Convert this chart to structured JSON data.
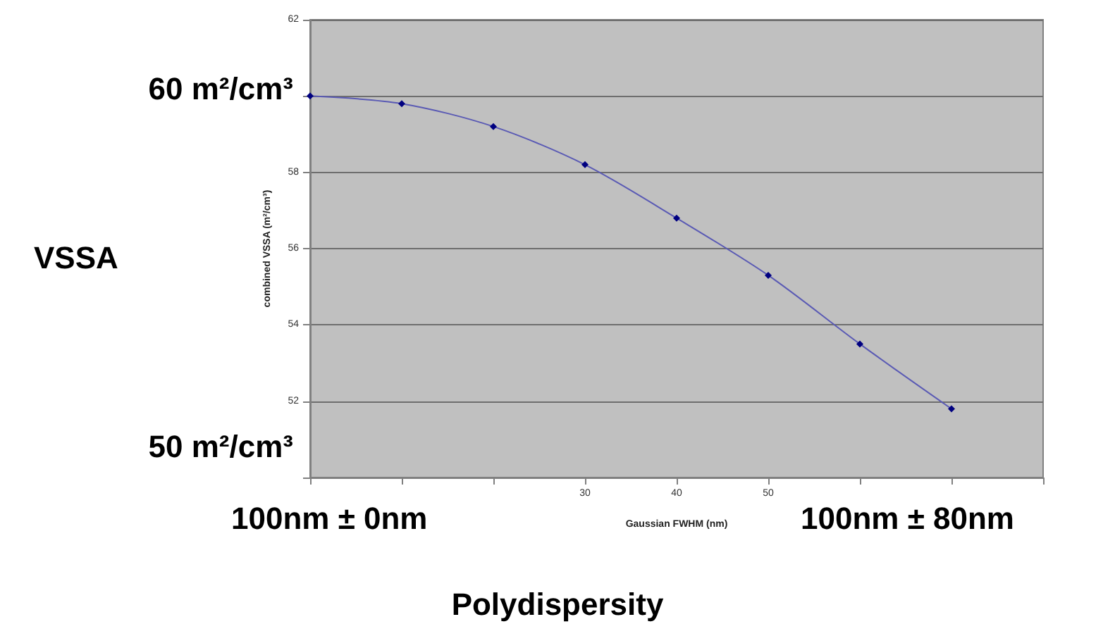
{
  "chart_data": {
    "type": "line",
    "xlabel": "Gaussian FWHM (nm)",
    "ylabel": "combined VSSA (m²/cm³)",
    "x": [
      0,
      10,
      20,
      30,
      40,
      50,
      60,
      70
    ],
    "series": [
      {
        "color": "#000080",
        "values": [
          60.0,
          59.8,
          59.2,
          58.2,
          56.8,
          55.3,
          53.5,
          51.8
        ]
      }
    ],
    "xlim": [
      0,
      80
    ],
    "xticks": [
      {
        "value": 0,
        "label": null
      },
      {
        "value": 10,
        "label": null
      },
      {
        "value": 20,
        "label": null
      },
      30,
      40,
      50,
      {
        "value": 60,
        "label": null
      },
      {
        "value": 70,
        "label": null
      },
      {
        "value": 80,
        "label": null
      }
    ],
    "ylim": [
      50,
      62
    ],
    "yticks": [
      {
        "value": 50,
        "label": null
      },
      52,
      54,
      56,
      58,
      {
        "value": 60,
        "label": null
      },
      62
    ],
    "grid": "y",
    "marker": "diamond",
    "line_style": "solid",
    "annotations": [
      "60 m²/cm³",
      "VSSA",
      "50 m²/cm³",
      "100nm ± 0nm",
      "100nm ± 80nm",
      "Polydispersity"
    ]
  }
}
